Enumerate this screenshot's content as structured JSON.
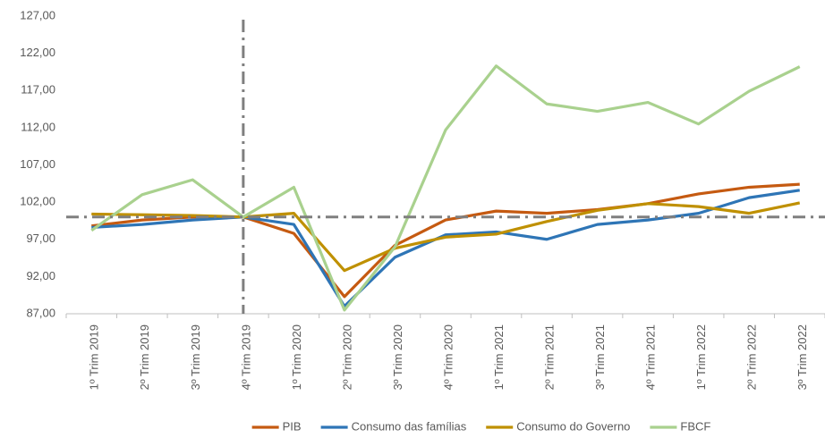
{
  "chart_data": {
    "type": "line",
    "categories": [
      "1º Trim 2019",
      "2º Trim 2019",
      "3º Trim 2019",
      "4º Trim 2019",
      "1º Trim 2020",
      "2º Trim 2020",
      "3º Trim 2020",
      "4º Trim 2020",
      "1º Trim 2021",
      "2º Trim 2021",
      "3º Trim 2021",
      "4º Trim 2021",
      "1º Trim 2022",
      "2º Trim 2022",
      "3º Trim 2022"
    ],
    "series": [
      {
        "name": "PIB",
        "color": "#c55a11",
        "values": [
          98.8,
          99.6,
          100.0,
          100.0,
          97.8,
          89.3,
          96.2,
          99.6,
          100.8,
          100.5,
          101.0,
          101.8,
          103.1,
          104.0,
          104.4
        ]
      },
      {
        "name": "Consumo das famílias",
        "color": "#2e75b6",
        "values": [
          98.6,
          99.0,
          99.6,
          100.0,
          99.0,
          88.0,
          94.6,
          97.6,
          98.0,
          97.0,
          99.0,
          99.6,
          100.5,
          102.6,
          103.6
        ]
      },
      {
        "name": "Consumo do Governo",
        "color": "#bf9000",
        "values": [
          100.4,
          100.3,
          100.2,
          100.0,
          100.5,
          92.8,
          95.8,
          97.3,
          97.7,
          99.4,
          100.9,
          101.8,
          101.4,
          100.5,
          101.9
        ]
      },
      {
        "name": "FBCF",
        "color": "#a9d18e",
        "values": [
          98.2,
          103.0,
          105.0,
          100.0,
          104.0,
          87.5,
          96.0,
          111.7,
          120.3,
          115.2,
          114.2,
          115.4,
          112.5,
          116.9,
          120.2
        ]
      }
    ],
    "ylim": [
      87,
      127
    ],
    "yticks": [
      {
        "value": 87,
        "label": "87,00"
      },
      {
        "value": 92,
        "label": "92,00"
      },
      {
        "value": 97,
        "label": "97,00"
      },
      {
        "value": 102,
        "label": "102,00"
      },
      {
        "value": 107,
        "label": "107,00"
      },
      {
        "value": 112,
        "label": "112,00"
      },
      {
        "value": 117,
        "label": "117,00"
      },
      {
        "value": 122,
        "label": "122,00"
      },
      {
        "value": 127,
        "label": "127,00"
      }
    ],
    "grid": false,
    "hline": 100,
    "vline": "4º Trim 2019",
    "legend": "bottom"
  }
}
